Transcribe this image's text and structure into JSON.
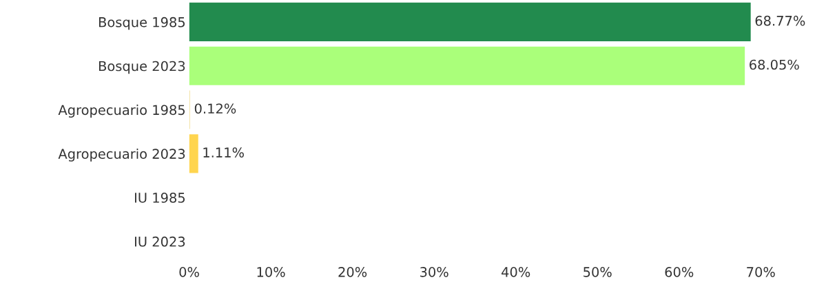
{
  "chart_data": {
    "type": "bar",
    "orientation": "horizontal",
    "categories": [
      "Bosque 1985",
      "Bosque 2023",
      "Agropecuario 1985",
      "Agropecuario 2023",
      "IU 1985",
      "IU 2023"
    ],
    "values": [
      68.77,
      68.05,
      0.12,
      1.11,
      null,
      null
    ],
    "colors": [
      "#228b4e",
      "#aaff7a",
      "#f5e6b0",
      "#ffd54f",
      "#cccccc",
      "#cccccc"
    ],
    "value_labels": [
      "68.77%",
      "68.05%",
      "0.12%",
      "1.11%",
      null,
      null
    ],
    "xlim": [
      0,
      70
    ],
    "xticks": [
      {
        "value": 0,
        "label": "0%"
      },
      {
        "value": 10,
        "label": "10%"
      },
      {
        "value": 20,
        "label": "20%"
      },
      {
        "value": 30,
        "label": "30%"
      },
      {
        "value": 40,
        "label": "40%"
      },
      {
        "value": 50,
        "label": "50%"
      },
      {
        "value": 60,
        "label": "60%"
      },
      {
        "value": 70,
        "label": "70%"
      }
    ],
    "grid": false,
    "legend": false
  }
}
